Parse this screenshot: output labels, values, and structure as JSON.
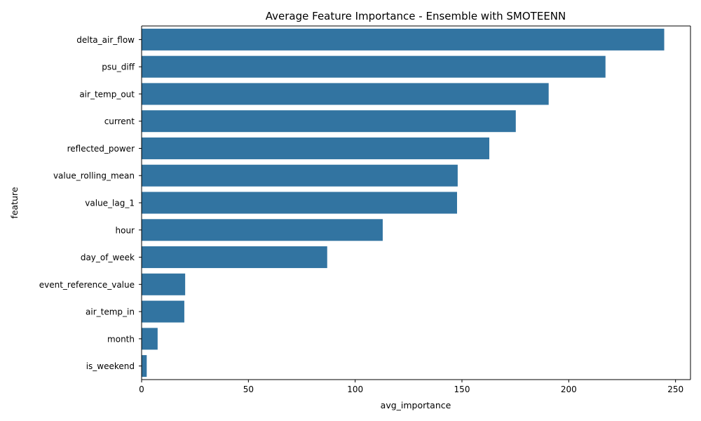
{
  "chart_data": {
    "type": "bar",
    "orientation": "horizontal",
    "title": "Average Feature Importance - Ensemble with SMOTEENN",
    "xlabel": "avg_importance",
    "ylabel": "feature",
    "categories": [
      "delta_air_flow",
      "psu_diff",
      "air_temp_out",
      "current",
      "reflected_power",
      "value_rolling_mean",
      "value_lag_1",
      "hour",
      "day_of_week",
      "event_reference_value",
      "air_temp_in",
      "month",
      "is_weekend"
    ],
    "values": [
      244.7,
      217.2,
      190.6,
      175.2,
      162.8,
      148.0,
      147.7,
      112.9,
      86.9,
      20.4,
      20.0,
      7.5,
      2.4
    ],
    "xlim": [
      0,
      257
    ],
    "xticks": [
      0,
      50,
      100,
      150,
      200,
      250
    ],
    "grid": false,
    "bar_color": "#3274a1"
  }
}
